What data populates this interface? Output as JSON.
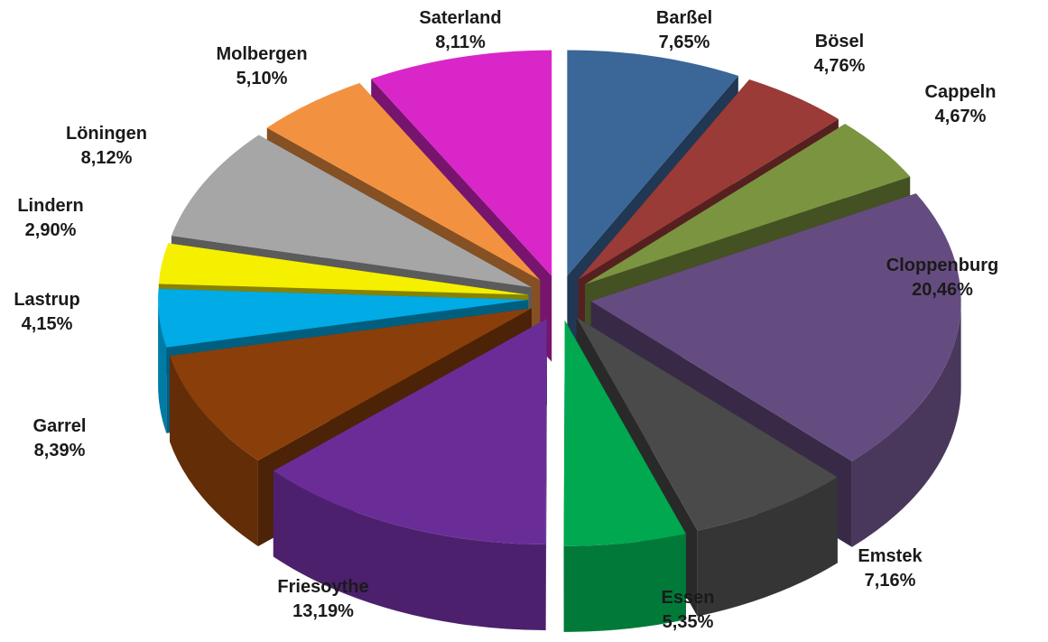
{
  "chart_data": {
    "type": "pie",
    "title": "",
    "style": "3d-exploded",
    "slices": [
      {
        "name": "Barßel",
        "label": "7,65%",
        "value": 7.65,
        "color": "#3b6698"
      },
      {
        "name": "Bösel",
        "label": "4,76%",
        "value": 4.76,
        "color": "#9a3b38"
      },
      {
        "name": "Cappeln",
        "label": "4,67%",
        "value": 4.67,
        "color": "#7a9440"
      },
      {
        "name": "Cloppenburg",
        "label": "20,46%",
        "value": 20.46,
        "color": "#654c80"
      },
      {
        "name": "Emstek",
        "label": "7,16%",
        "value": 7.16,
        "color": "#4a4a4a"
      },
      {
        "name": "Essen",
        "label": "5,35%",
        "value": 5.35,
        "color": "#00a84f"
      },
      {
        "name": "Friesoythe",
        "label": "13,19%",
        "value": 13.19,
        "color": "#6a2d98"
      },
      {
        "name": "Garrel",
        "label": "8,39%",
        "value": 8.39,
        "color": "#8a3f0b"
      },
      {
        "name": "Lastrup",
        "label": "4,15%",
        "value": 4.15,
        "color": "#00abe6"
      },
      {
        "name": "Lindern",
        "label": "2,90%",
        "value": 2.9,
        "color": "#f5ef00"
      },
      {
        "name": "Löningen",
        "label": "8,12%",
        "value": 8.12,
        "color": "#a6a6a6"
      },
      {
        "name": "Molbergen",
        "label": "5,10%",
        "value": 5.1,
        "color": "#f29240"
      },
      {
        "name": "Saterland",
        "label": "8,11%",
        "value": 8.11,
        "color": "#d926c8"
      }
    ]
  }
}
